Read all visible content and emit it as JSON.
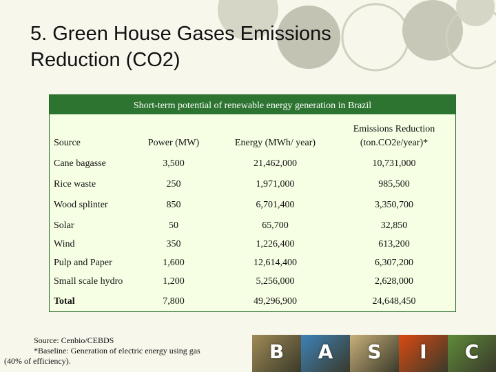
{
  "slide": {
    "title_line1": "5. Green House Gases Emissions",
    "title_line2": "Reduction (CO2)"
  },
  "table": {
    "caption": "Short-term potential of renewable energy generation  in Brazil",
    "headers": {
      "source": "Source",
      "power": "Power (MW)",
      "energy": "Energy (MWh/ year)",
      "emissions_line1": "Emissions Reduction",
      "emissions_line2": "(ton.CO2e/year)*"
    },
    "rows": [
      {
        "source": "Cane bagasse",
        "power": "3,500",
        "energy": "21,462,000",
        "emissions": "10,731,000"
      },
      {
        "source": "Rice waste",
        "power": "250",
        "energy": "1,971,000",
        "emissions": "985,500"
      },
      {
        "source": "Wood splinter",
        "power": "850",
        "energy": "6,701,400",
        "emissions": "3,350,700"
      },
      {
        "source": "Solar",
        "power": "50",
        "energy": "65,700",
        "emissions": "32,850"
      },
      {
        "source": "Wind",
        "power": "350",
        "energy": "1,226,400",
        "emissions": "613,200"
      },
      {
        "source": "Pulp and Paper",
        "power": "1,600",
        "energy": "12,614,400",
        "emissions": "6,307,200"
      },
      {
        "source": "Small scale hydro",
        "power": "1,200",
        "energy": "5,256,000",
        "emissions": "2,628,000"
      },
      {
        "source": "Total",
        "power": "7,800",
        "energy": "49,296,900",
        "emissions": "24,648,450"
      }
    ]
  },
  "footnote": {
    "line1": "Source: Cenbio/CEBDS",
    "line2": "*Baseline: Generation of electric energy using gas",
    "line3": "(40% of efficiency)."
  },
  "basic_banner": {
    "letters": [
      "B",
      "A",
      "S",
      "I",
      "C"
    ],
    "colors": [
      "#a08a55",
      "#3d82b8",
      "#c9b07a",
      "#d94a12",
      "#5f8b3a"
    ]
  },
  "theme": {
    "header_green": "#2d7431",
    "table_bg": "#f6ffe4",
    "page_bg": "#f7f7ec"
  }
}
